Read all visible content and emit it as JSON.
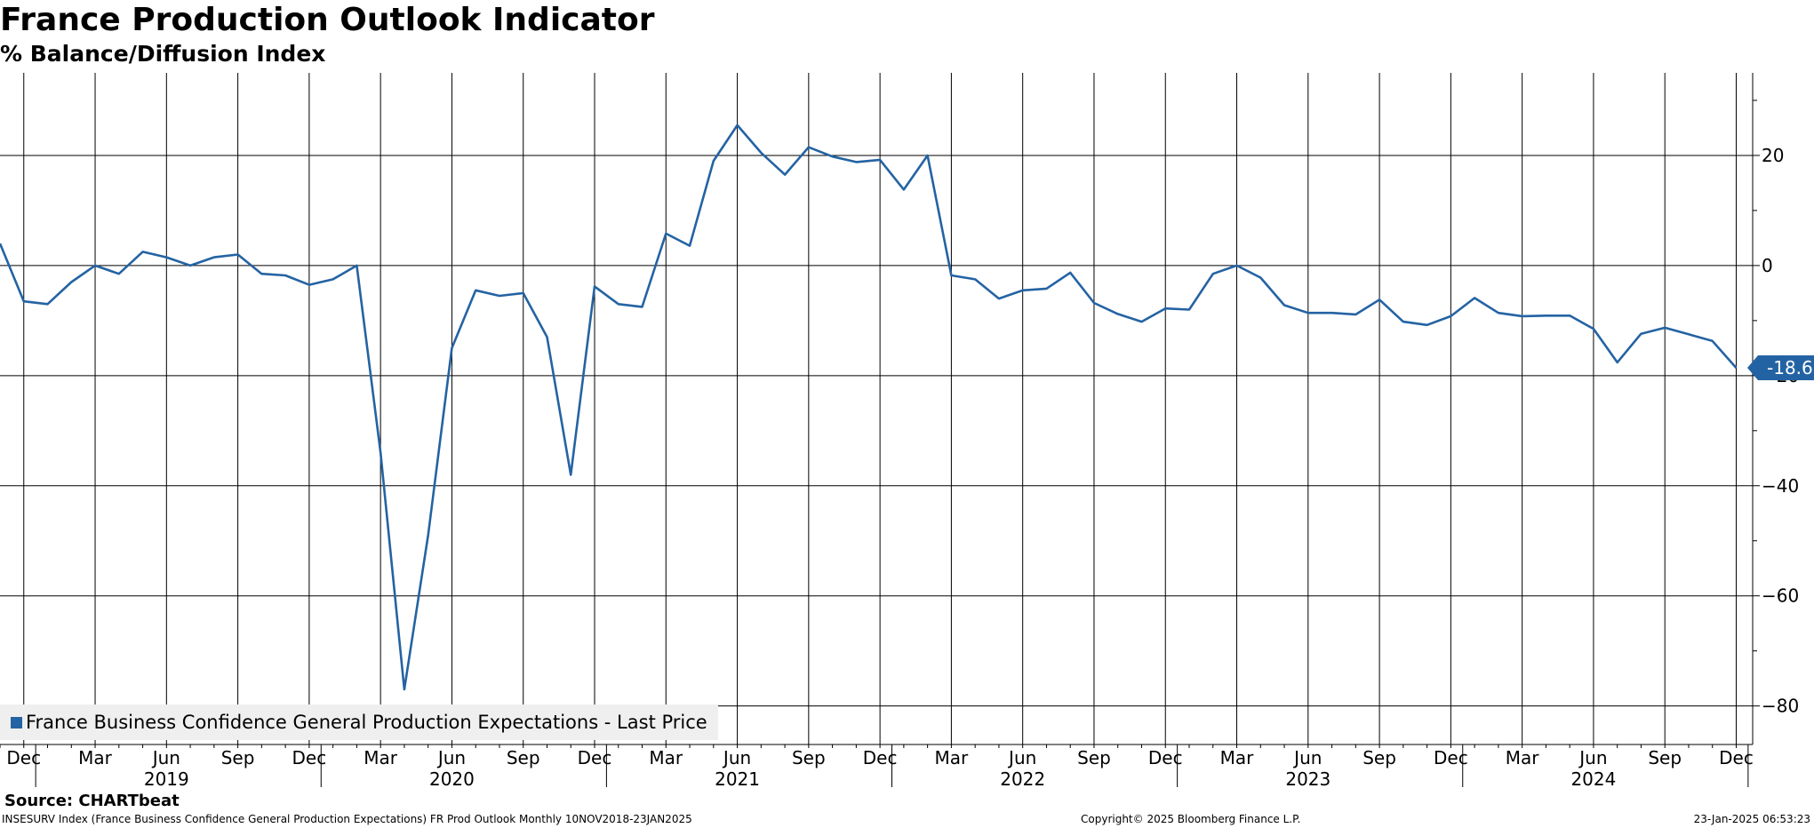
{
  "header": {
    "title": "France Production Outlook Indicator",
    "subtitle": "% Balance/Diffusion Index"
  },
  "legend": {
    "label": "France Business Confidence General Production Expectations - Last Price"
  },
  "source": "Source: CHARTbeat",
  "footer": {
    "left": "INSESURV Index (France Business Confidence General Production Expectations) FR Prod Outlook  Monthly 10NOV2018-23JAN2025",
    "center": "Copyright© 2025 Bloomberg Finance L.P.",
    "right": "23-Jan-2025 06:53:23"
  },
  "last_value_label": "-18.6",
  "colors": {
    "series": "#2463a3",
    "grid": "#000000",
    "legend_bg": "#efefef"
  },
  "chart_data": {
    "type": "line",
    "title": "France Production Outlook Indicator",
    "subtitle": "% Balance/Diffusion Index",
    "xlabel": "",
    "ylabel": "",
    "ylim": [
      -87,
      35
    ],
    "y_ticks": [
      20,
      0,
      -20,
      -40,
      -60,
      -80
    ],
    "y_axis_side": "right",
    "grid": true,
    "legend_placement": "bottom-left",
    "x_month_labels": [
      "Dec",
      "Mar",
      "Jun",
      "Sep",
      "Dec",
      "Mar",
      "Jun",
      "Sep",
      "Dec",
      "Mar",
      "Jun",
      "Sep",
      "Dec",
      "Mar",
      "Jun",
      "Sep",
      "Dec",
      "Mar",
      "Jun",
      "Sep",
      "Dec",
      "Mar",
      "Jun",
      "Sep",
      "Dec"
    ],
    "x_year_labels": [
      "2019",
      "2020",
      "2021",
      "2022",
      "2023",
      "2024"
    ],
    "series": [
      {
        "name": "France Business Confidence General Production Expectations - Last Price",
        "x": [
          "2018-11",
          "2018-12",
          "2019-01",
          "2019-02",
          "2019-03",
          "2019-04",
          "2019-05",
          "2019-06",
          "2019-07",
          "2019-08",
          "2019-09",
          "2019-10",
          "2019-11",
          "2019-12",
          "2020-01",
          "2020-02",
          "2020-03",
          "2020-04",
          "2020-05",
          "2020-06",
          "2020-07",
          "2020-08",
          "2020-09",
          "2020-10",
          "2020-11",
          "2020-12",
          "2021-01",
          "2021-02",
          "2021-03",
          "2021-04",
          "2021-05",
          "2021-06",
          "2021-07",
          "2021-08",
          "2021-09",
          "2021-10",
          "2021-11",
          "2021-12",
          "2022-01",
          "2022-02",
          "2022-03",
          "2022-04",
          "2022-05",
          "2022-06",
          "2022-07",
          "2022-08",
          "2022-09",
          "2022-10",
          "2022-11",
          "2022-12",
          "2023-01",
          "2023-02",
          "2023-03",
          "2023-04",
          "2023-05",
          "2023-06",
          "2023-07",
          "2023-08",
          "2023-09",
          "2023-10",
          "2023-11",
          "2023-12",
          "2024-01",
          "2024-02",
          "2024-03",
          "2024-04",
          "2024-05",
          "2024-06",
          "2024-07",
          "2024-08",
          "2024-09",
          "2024-10",
          "2024-11",
          "2024-12"
        ],
        "values": [
          4,
          -6.5,
          -7,
          -3,
          0,
          -1.5,
          2.5,
          1.5,
          0,
          1.5,
          2,
          -1.5,
          -1.8,
          -3.5,
          -2.5,
          0,
          -34,
          -77,
          -49,
          -15,
          -4.5,
          -5.5,
          -5,
          -13,
          -38,
          -3.8,
          -7,
          -7.5,
          5.8,
          3.6,
          19,
          25.5,
          20.5,
          16.5,
          21.5,
          19.8,
          18.8,
          19.2,
          13.8,
          20,
          -1.8,
          -2.5,
          -6,
          -4.5,
          -4.2,
          -1.3,
          -6.8,
          -8.8,
          -10.2,
          -7.8,
          -8,
          -1.5,
          0,
          -2.2,
          -7.2,
          -8.6,
          -8.6,
          -8.9,
          -6.2,
          -10.2,
          -10.8,
          -9.2,
          -5.9,
          -8.6,
          -9.2,
          -9.1,
          -9.1,
          -11.5,
          -17.6,
          -12.4,
          -11.3,
          -12.5,
          -13.7,
          -18.6
        ]
      }
    ]
  }
}
